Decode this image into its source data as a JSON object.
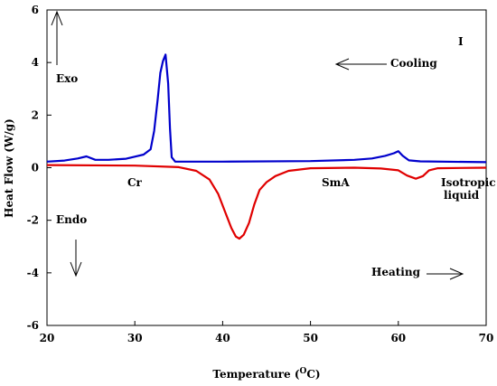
{
  "chart_data": {
    "type": "line",
    "xlabel": "Temperature (",
    "xlabel_sup": "O",
    "xlabel_end": "C)",
    "ylabel": "Heat Flow (W/g)",
    "xlim": [
      20,
      70
    ],
    "ylim": [
      -6,
      6
    ],
    "x_ticks": [
      20,
      30,
      40,
      50,
      60,
      70
    ],
    "y_ticks": [
      -6,
      -4,
      -2,
      0,
      2,
      4,
      6
    ],
    "grid": false,
    "series": [
      {
        "key": "cooling",
        "color": "#0000cc",
        "points": [
          [
            20.0,
            0.23
          ],
          [
            22.0,
            0.27
          ],
          [
            23.5,
            0.35
          ],
          [
            24.5,
            0.43
          ],
          [
            25.5,
            0.3
          ],
          [
            27.0,
            0.3
          ],
          [
            29.0,
            0.34
          ],
          [
            30.0,
            0.42
          ],
          [
            31.0,
            0.5
          ],
          [
            31.8,
            0.7
          ],
          [
            32.2,
            1.4
          ],
          [
            32.6,
            2.6
          ],
          [
            32.9,
            3.6
          ],
          [
            33.2,
            4.05
          ],
          [
            33.5,
            4.3
          ],
          [
            33.8,
            3.2
          ],
          [
            34.0,
            1.5
          ],
          [
            34.2,
            0.4
          ],
          [
            34.6,
            0.23
          ],
          [
            40.0,
            0.23
          ],
          [
            50.0,
            0.25
          ],
          [
            55.0,
            0.3
          ],
          [
            57.0,
            0.35
          ],
          [
            58.5,
            0.45
          ],
          [
            59.5,
            0.55
          ],
          [
            60.0,
            0.63
          ],
          [
            60.5,
            0.45
          ],
          [
            61.2,
            0.28
          ],
          [
            62.5,
            0.24
          ],
          [
            70.0,
            0.21
          ]
        ]
      },
      {
        "key": "heating",
        "color": "#e00000",
        "points": [
          [
            20.0,
            0.1
          ],
          [
            30.0,
            0.08
          ],
          [
            35.0,
            0.02
          ],
          [
            37.0,
            -0.12
          ],
          [
            38.5,
            -0.45
          ],
          [
            39.5,
            -1.0
          ],
          [
            40.3,
            -1.7
          ],
          [
            41.0,
            -2.3
          ],
          [
            41.5,
            -2.62
          ],
          [
            41.9,
            -2.7
          ],
          [
            42.4,
            -2.55
          ],
          [
            43.0,
            -2.1
          ],
          [
            43.6,
            -1.4
          ],
          [
            44.2,
            -0.85
          ],
          [
            45.0,
            -0.55
          ],
          [
            46.0,
            -0.32
          ],
          [
            47.5,
            -0.12
          ],
          [
            50.0,
            -0.02
          ],
          [
            55.0,
            0.0
          ],
          [
            58.0,
            -0.03
          ],
          [
            60.0,
            -0.1
          ],
          [
            61.0,
            -0.3
          ],
          [
            62.0,
            -0.42
          ],
          [
            62.8,
            -0.32
          ],
          [
            63.5,
            -0.1
          ],
          [
            64.5,
            -0.02
          ],
          [
            70.0,
            0.0
          ]
        ]
      }
    ],
    "annotations": {
      "I": "I",
      "cooling": "Cooling",
      "exo": "Exo",
      "cr": "Cr",
      "sma": "SmA",
      "isotropic_1": "Isotropic",
      "isotropic_2": "liquid",
      "endo": "Endo",
      "heating": "Heating"
    }
  }
}
